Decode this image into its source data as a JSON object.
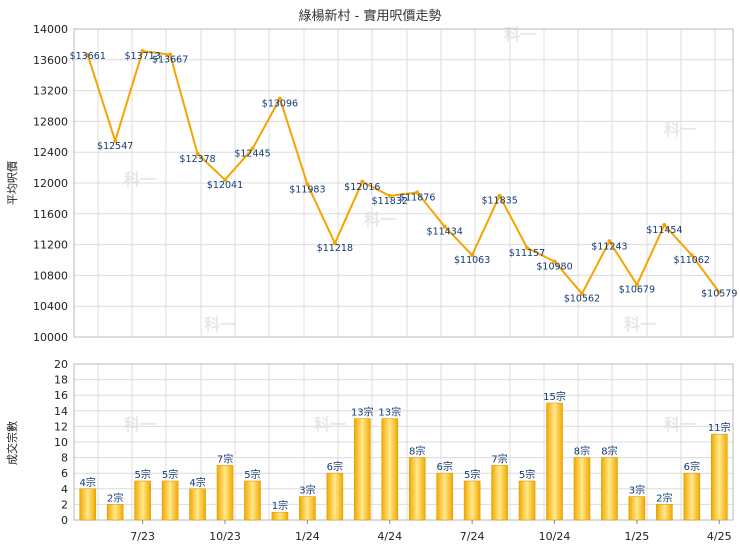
{
  "chart_data": [
    {
      "type": "line",
      "title": "綠楊新村 - 實用呎價走勢",
      "ylabel": "平均呎價",
      "ylim": [
        10000,
        14000
      ],
      "yticks": [
        10000,
        10400,
        10800,
        11200,
        11600,
        12000,
        12400,
        12800,
        13200,
        13600,
        14000
      ],
      "values": [
        13661,
        12547,
        13713,
        13667,
        12378,
        12041,
        12445,
        13096,
        11983,
        11218,
        12016,
        11832,
        11876,
        11434,
        11063,
        11835,
        11157,
        10980,
        10562,
        11243,
        10679,
        11454,
        11062,
        10579
      ],
      "labels": [
        "$13661",
        "$12547",
        "$13713",
        "$13667",
        "$12378",
        "$12041",
        "$12445",
        "$13096",
        "$11983",
        "$11218",
        "$12016",
        "$11832",
        "$11876",
        "$11434",
        "$11063",
        "$11835",
        "$11157",
        "$10980",
        "$10562",
        "$11243",
        "$10679",
        "$11454",
        "$11062",
        "$10579"
      ],
      "color": "#f5a400",
      "grid": true
    },
    {
      "type": "bar",
      "ylabel": "成交宗數",
      "ylim": [
        0,
        20
      ],
      "yticks": [
        0,
        2,
        4,
        6,
        8,
        10,
        12,
        14,
        16,
        18,
        20
      ],
      "values": [
        4,
        2,
        5,
        5,
        4,
        7,
        5,
        1,
        3,
        6,
        13,
        13,
        8,
        6,
        5,
        7,
        5,
        15,
        8,
        8,
        3,
        2,
        6,
        11
      ],
      "labels": [
        "4宗",
        "2宗",
        "5宗",
        "5宗",
        "4宗",
        "7宗",
        "5宗",
        "1宗",
        "3宗",
        "6宗",
        "13宗",
        "13宗",
        "8宗",
        "6宗",
        "5宗",
        "7宗",
        "5宗",
        "15宗",
        "8宗",
        "8宗",
        "3宗",
        "2宗",
        "6宗",
        "11宗"
      ],
      "xticks": [
        "7/23",
        "10/23",
        "1/24",
        "4/24",
        "7/24",
        "10/24",
        "1/25",
        "4/25"
      ],
      "color": "#f5a400",
      "grid": true
    }
  ],
  "watermark": "科一"
}
